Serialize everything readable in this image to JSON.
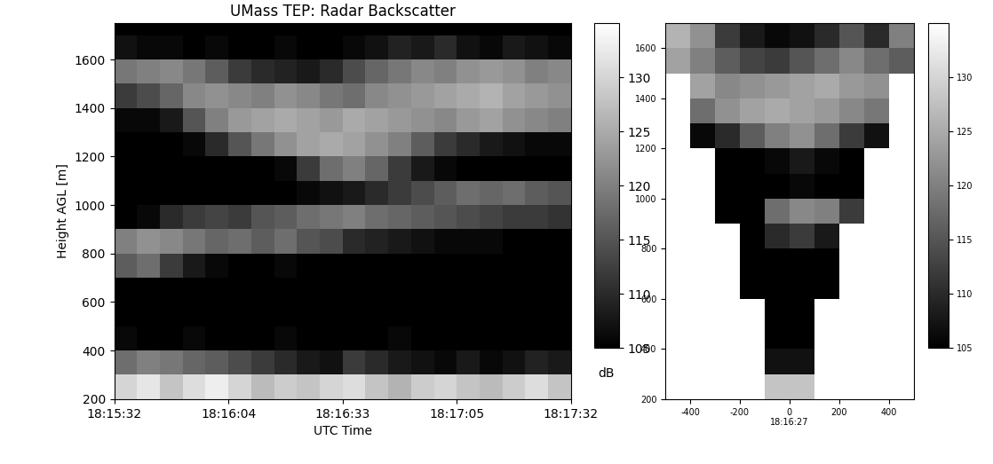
{
  "chart_data": [
    {
      "type": "heatmap",
      "title": "UMass TEP: Radar Backscatter",
      "x_label": "UTC Time",
      "y_label": "Height AGL [m]",
      "x_edges": [
        0,
        2,
        4,
        6,
        8,
        10,
        12,
        14,
        16,
        18,
        20,
        22,
        24,
        26,
        28,
        30,
        32,
        34,
        36,
        38,
        40
      ],
      "y_edges": [
        200,
        300,
        400,
        500,
        600,
        700,
        800,
        900,
        1000,
        1100,
        1200,
        1300,
        1400,
        1500,
        1600,
        1700,
        1800
      ],
      "xlim": [
        0,
        40
      ],
      "ylim": [
        200,
        1750
      ],
      "xticks": [
        {
          "value": 0,
          "label": "18:15:32"
        },
        {
          "value": 10,
          "label": "18:16:04"
        },
        {
          "value": 20,
          "label": "18:16:33"
        },
        {
          "value": 30,
          "label": "18:17:05"
        },
        {
          "value": 40,
          "label": "18:17:32"
        }
      ],
      "yticks": [
        200,
        400,
        600,
        800,
        1000,
        1200,
        1400,
        1600
      ],
      "color": "gray",
      "cells": [
        [
          130,
          132,
          128,
          131,
          133,
          130,
          127,
          129,
          128,
          130,
          131,
          128,
          126,
          129,
          130,
          128,
          127,
          129,
          131,
          128
        ],
        [
          118,
          120,
          119,
          117,
          116,
          114,
          112,
          110,
          108,
          107,
          112,
          110,
          108,
          107,
          106,
          108,
          106,
          107,
          109,
          108
        ],
        [
          106,
          105,
          105,
          106,
          105,
          105,
          105,
          106,
          105,
          105,
          105,
          105,
          106,
          105,
          105,
          105,
          105,
          105,
          105,
          105
        ],
        [
          105,
          105,
          105,
          105,
          105,
          105,
          105,
          105,
          105,
          105,
          105,
          105,
          105,
          105,
          105,
          105,
          105,
          105,
          105,
          105
        ],
        [
          105,
          105,
          105,
          105,
          105,
          105,
          105,
          105,
          105,
          105,
          105,
          105,
          105,
          105,
          105,
          105,
          105,
          105,
          105,
          105
        ],
        [
          116,
          118,
          112,
          108,
          106,
          105,
          105,
          106,
          105,
          105,
          105,
          105,
          105,
          105,
          105,
          105,
          105,
          105,
          105,
          105
        ],
        [
          120,
          122,
          121,
          119,
          117,
          118,
          116,
          118,
          115,
          114,
          110,
          109,
          108,
          107,
          106,
          106,
          106,
          105,
          105,
          105
        ],
        [
          105,
          106,
          110,
          112,
          113,
          112,
          115,
          116,
          118,
          119,
          120,
          118,
          117,
          116,
          115,
          114,
          113,
          112,
          112,
          111
        ],
        [
          105,
          105,
          105,
          105,
          105,
          105,
          105,
          105,
          106,
          107,
          108,
          110,
          112,
          114,
          116,
          118,
          117,
          118,
          116,
          115
        ],
        [
          105,
          105,
          105,
          105,
          105,
          105,
          105,
          106,
          112,
          118,
          120,
          117,
          112,
          108,
          106,
          105,
          105,
          105,
          105,
          105
        ],
        [
          105,
          105,
          105,
          106,
          110,
          115,
          119,
          122,
          124,
          125,
          124,
          122,
          120,
          116,
          112,
          110,
          108,
          107,
          106,
          106
        ],
        [
          106,
          106,
          108,
          115,
          120,
          123,
          124,
          125,
          124,
          123,
          125,
          124,
          123,
          122,
          121,
          123,
          124,
          122,
          121,
          120
        ],
        [
          112,
          114,
          117,
          121,
          122,
          121,
          120,
          122,
          121,
          119,
          118,
          121,
          122,
          123,
          124,
          125,
          126,
          124,
          123,
          122
        ],
        [
          119,
          120,
          121,
          119,
          116,
          112,
          110,
          109,
          108,
          110,
          114,
          117,
          119,
          121,
          120,
          122,
          123,
          122,
          120,
          121
        ],
        [
          107,
          106,
          106,
          105,
          106,
          105,
          105,
          106,
          105,
          105,
          106,
          107,
          109,
          108,
          110,
          107,
          106,
          108,
          107,
          106
        ],
        [
          105,
          105,
          105,
          105,
          105,
          105,
          105,
          105,
          105,
          105,
          105,
          105,
          105,
          105,
          105,
          105,
          105,
          105,
          105,
          105
        ]
      ],
      "colorbar": {
        "range": [
          105,
          135
        ],
        "ticks": [
          105,
          110,
          115,
          120,
          125,
          130
        ],
        "label": "dB"
      }
    },
    {
      "type": "heatmap",
      "x_edges": [
        -500,
        -400,
        -300,
        -200,
        -100,
        0,
        100,
        200,
        300,
        400,
        500
      ],
      "y_edges": [
        200,
        300,
        400,
        500,
        600,
        700,
        800,
        900,
        1000,
        1100,
        1200,
        1300,
        1400,
        1500,
        1600,
        1700
      ],
      "xlim": [
        -500,
        500
      ],
      "ylim": [
        200,
        1700
      ],
      "xticks": [
        -400,
        -200,
        {
          "value": 0,
          "label": "0\n18:16:27"
        },
        200,
        400
      ],
      "yticks": [
        200,
        400,
        600,
        800,
        1000,
        1200,
        1400,
        1600
      ],
      "color": "gray",
      "cells": [
        [
          null,
          null,
          null,
          null,
          128,
          128,
          null,
          null,
          null,
          null
        ],
        [
          null,
          null,
          null,
          null,
          107,
          107,
          null,
          null,
          null,
          null
        ],
        [
          null,
          null,
          null,
          null,
          105,
          105,
          null,
          null,
          null,
          null
        ],
        [
          null,
          null,
          null,
          null,
          105,
          105,
          null,
          null,
          null,
          null
        ],
        [
          null,
          null,
          null,
          105,
          105,
          105,
          105,
          null,
          null,
          null
        ],
        [
          null,
          null,
          null,
          105,
          105,
          105,
          105,
          null,
          null,
          null
        ],
        [
          null,
          null,
          null,
          105,
          110,
          112,
          108,
          null,
          null,
          null
        ],
        [
          null,
          null,
          105,
          105,
          118,
          121,
          120,
          112,
          null,
          null
        ],
        [
          null,
          null,
          105,
          105,
          105,
          106,
          105,
          105,
          null,
          null
        ],
        [
          null,
          null,
          105,
          105,
          106,
          108,
          106,
          105,
          null,
          null
        ],
        [
          null,
          106,
          110,
          116,
          120,
          122,
          118,
          112,
          107,
          null
        ],
        [
          null,
          118,
          122,
          124,
          125,
          124,
          123,
          121,
          119,
          null
        ],
        [
          null,
          124,
          121,
          122,
          123,
          124,
          125,
          123,
          122,
          null
        ],
        [
          124,
          120,
          116,
          113,
          112,
          115,
          118,
          121,
          118,
          116
        ],
        [
          126,
          122,
          112,
          108,
          106,
          107,
          110,
          115,
          110,
          120
        ]
      ],
      "colorbar": {
        "range": [
          105,
          135
        ],
        "ticks": [
          105,
          110,
          115,
          120,
          125,
          130
        ]
      }
    }
  ]
}
